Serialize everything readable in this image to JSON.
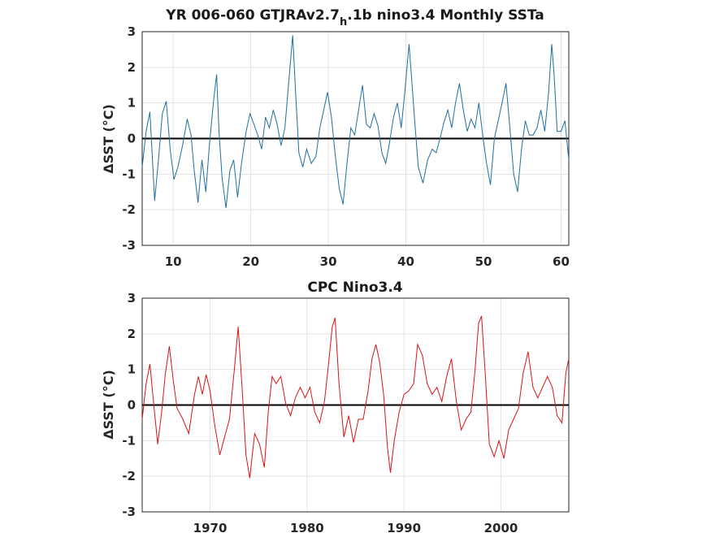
{
  "chart_data": [
    {
      "type": "line",
      "title": "YR 006-060 GTJRAv2.7",
      "title_sub": "h",
      "title_rest": ".1b nino3.4 Monthly SSTa",
      "ylabel": "ΔSST (°C)",
      "xlim": [
        6,
        61
      ],
      "ylim": [
        -3,
        3
      ],
      "xticks": [
        10,
        20,
        30,
        40,
        50,
        60
      ],
      "yticks": [
        -3,
        -2,
        -1,
        0,
        1,
        2,
        3
      ],
      "grid": true,
      "line_color": "#1f6fa3",
      "zero_line": 0,
      "series": [
        {
          "x": [
            6,
            6.5,
            7,
            7.3,
            7.6,
            8.1,
            8.6,
            9.1,
            9.6,
            10.1,
            10.6,
            11.2,
            11.8,
            12.3,
            12.7,
            13.2,
            13.7,
            14.2,
            14.7,
            15.2,
            15.6,
            15.9,
            16.3,
            16.8,
            17.3,
            17.8,
            18.3,
            18.8,
            19.4,
            19.9,
            20.4,
            20.9,
            21.4,
            21.9,
            22.4,
            22.9,
            23.4,
            23.9,
            24.4,
            24.9,
            25.4,
            25.8,
            26.2,
            26.7,
            27.2,
            27.8,
            28.4,
            28.9,
            29.4,
            29.9,
            30.4,
            30.9,
            31.4,
            31.9,
            32.4,
            32.9,
            33.4,
            33.9,
            34.4,
            34.9,
            35.4,
            35.9,
            36.4,
            36.9,
            37.4,
            37.9,
            38.4,
            38.9,
            39.4,
            39.9,
            40.4,
            40.7,
            41.1,
            41.6,
            42.2,
            42.8,
            43.4,
            43.9,
            44.4,
            44.9,
            45.4,
            45.9,
            46.4,
            46.9,
            47.4,
            47.9,
            48.4,
            48.9,
            49.4,
            49.9,
            50.4,
            50.9,
            51.4,
            51.9,
            52.4,
            52.9,
            53.4,
            53.9,
            54.4,
            54.9,
            55.4,
            55.9,
            56.4,
            56.9,
            57.4,
            57.9,
            58.4,
            58.8,
            59.1,
            59.5,
            60,
            60.5,
            61
          ],
          "y": [
            -0.8,
            0.2,
            0.75,
            -0.5,
            -1.75,
            -0.6,
            0.7,
            1.05,
            -0.3,
            -1.15,
            -0.8,
            -0.2,
            0.55,
            0.1,
            -0.9,
            -1.8,
            -0.6,
            -1.5,
            -0.1,
            1.05,
            1.8,
            0.2,
            -1.1,
            -1.95,
            -0.9,
            -0.6,
            -1.65,
            -0.7,
            0.2,
            0.7,
            0.4,
            0.1,
            -0.3,
            0.6,
            0.3,
            0.8,
            0.4,
            -0.2,
            0.3,
            1.6,
            2.9,
            1.2,
            -0.4,
            -0.8,
            -0.3,
            -0.7,
            -0.5,
            0.3,
            0.8,
            1.3,
            0.6,
            -0.5,
            -1.4,
            -1.85,
            -0.7,
            0.3,
            0.1,
            0.8,
            1.5,
            0.4,
            0.3,
            0.7,
            0.35,
            -0.4,
            -0.7,
            -0.1,
            0.6,
            1.0,
            0.3,
            1.4,
            2.65,
            1.8,
            0.6,
            -0.8,
            -1.25,
            -0.6,
            -0.3,
            -0.4,
            0.0,
            0.45,
            0.8,
            0.3,
            1.0,
            1.55,
            0.8,
            0.2,
            0.55,
            0.3,
            1.0,
            0.1,
            -0.7,
            -1.3,
            0.0,
            0.5,
            1.0,
            1.55,
            0.3,
            -1.0,
            -1.5,
            -0.3,
            0.5,
            0.1,
            0.1,
            0.3,
            0.8,
            0.2,
            1.3,
            2.65,
            1.8,
            0.2,
            0.2,
            0.5,
            -0.6
          ]
        }
      ]
    },
    {
      "type": "line",
      "title": "CPC Nino3.4",
      "ylabel": "ΔSST (°C)",
      "xlim": [
        1963,
        2007
      ],
      "ylim": [
        -3,
        3
      ],
      "xticks": [
        1970,
        1980,
        1990,
        2000
      ],
      "yticks": [
        -3,
        -2,
        -1,
        0,
        1,
        2,
        3
      ],
      "grid": true,
      "line_color": "#d81414",
      "zero_line": 0,
      "series": [
        {
          "x": [
            1963,
            1963.4,
            1963.8,
            1964.2,
            1964.6,
            1965,
            1965.4,
            1965.8,
            1966.2,
            1966.6,
            1967.2,
            1967.8,
            1968.4,
            1968.8,
            1969.2,
            1969.6,
            1970,
            1970.5,
            1971,
            1971.5,
            1972,
            1972.5,
            1972.9,
            1973.3,
            1973.7,
            1974.1,
            1974.6,
            1975.1,
            1975.6,
            1976,
            1976.4,
            1976.8,
            1977.3,
            1977.8,
            1978.3,
            1978.8,
            1979.3,
            1979.8,
            1980.3,
            1980.8,
            1981.3,
            1981.8,
            1982.2,
            1982.6,
            1982.9,
            1983.3,
            1983.8,
            1984.3,
            1984.8,
            1985.3,
            1985.8,
            1986.3,
            1986.7,
            1987.1,
            1987.5,
            1987.9,
            1988.3,
            1988.6,
            1989,
            1989.5,
            1990,
            1990.5,
            1991,
            1991.4,
            1991.9,
            1992.4,
            1992.9,
            1993.4,
            1993.9,
            1994.4,
            1994.9,
            1995.4,
            1995.9,
            1996.4,
            1996.9,
            1997.3,
            1997.7,
            1998,
            1998.4,
            1998.8,
            1999.3,
            1999.8,
            2000.3,
            2000.8,
            2001.3,
            2001.8,
            2002.3,
            2002.8,
            2003.3,
            2003.8,
            2004.3,
            2004.8,
            2005.3,
            2005.8,
            2006.3,
            2006.7,
            2007
          ],
          "y": [
            -0.4,
            0.6,
            1.15,
            0.0,
            -1.1,
            -0.2,
            0.9,
            1.65,
            0.7,
            -0.1,
            -0.4,
            -0.8,
            0.3,
            0.8,
            0.3,
            0.85,
            0.4,
            -0.6,
            -1.4,
            -0.9,
            -0.4,
            1.0,
            2.2,
            0.5,
            -1.4,
            -2.05,
            -0.8,
            -1.1,
            -1.75,
            -0.2,
            0.8,
            0.6,
            0.8,
            0.05,
            -0.3,
            0.2,
            0.5,
            0.2,
            0.5,
            -0.2,
            -0.5,
            0.1,
            1.1,
            2.2,
            2.45,
            0.6,
            -0.9,
            -0.3,
            -1.05,
            -0.4,
            -0.4,
            0.4,
            1.3,
            1.7,
            1.2,
            0.3,
            -1.2,
            -1.9,
            -1.0,
            -0.2,
            0.3,
            0.4,
            0.6,
            1.7,
            1.4,
            0.6,
            0.3,
            0.5,
            0.1,
            0.8,
            1.3,
            0.1,
            -0.7,
            -0.4,
            -0.2,
            0.9,
            2.3,
            2.5,
            0.8,
            -1.1,
            -1.45,
            -1.0,
            -1.5,
            -0.7,
            -0.4,
            -0.1,
            0.9,
            1.5,
            0.5,
            0.2,
            0.5,
            0.8,
            0.5,
            -0.3,
            -0.5,
            0.9,
            1.3
          ]
        }
      ]
    }
  ]
}
